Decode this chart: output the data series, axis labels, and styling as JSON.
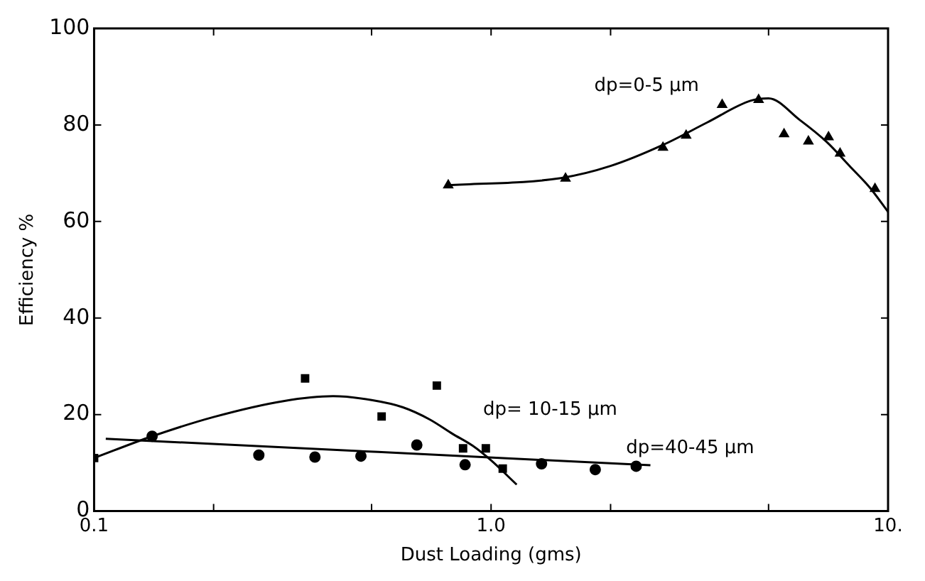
{
  "chart_data": {
    "type": "scatter",
    "xlabel": "Dust Loading (gms)",
    "ylabel": "Efficiency %",
    "log": "x",
    "grid": false,
    "legend": false,
    "xlim": [
      0.1,
      10
    ],
    "xticks": [
      0.1,
      {
        "value": 0.2,
        "label": null
      },
      {
        "value": 0.5,
        "label": null
      },
      {
        "value": 1,
        "label": "1.0"
      },
      {
        "value": 2,
        "label": null
      },
      {
        "value": 5,
        "label": null
      },
      {
        "value": 10,
        "label": "10."
      }
    ],
    "ylim": [
      0,
      100
    ],
    "yticks": [
      0,
      20,
      40,
      60,
      80,
      100
    ],
    "series": [
      {
        "type": "scatter",
        "marker": "triangle",
        "color": "#000000",
        "x": [
          0.78,
          1.54,
          2.71,
          3.1,
          3.82,
          4.72,
          5.47,
          6.3,
          7.08,
          7.57,
          9.27
        ],
        "values": [
          67.5,
          68.9,
          75.3,
          77.8,
          84.2,
          85.2,
          78.1,
          76.6,
          77.5,
          74.1,
          66.8
        ]
      },
      {
        "type": "line",
        "color": "#000000",
        "x": [
          0.78,
          1.5,
          2,
          2.7,
          3.5,
          4.5,
          5,
          6,
          7,
          8,
          9,
          10
        ],
        "values": [
          67.5,
          69,
          71.5,
          75.8,
          80.5,
          85,
          85.5,
          81,
          76.5,
          71.5,
          67,
          62
        ]
      },
      {
        "type": "scatter",
        "marker": "square",
        "color": "#000000",
        "x": [
          0.1,
          0.34,
          0.53,
          0.73,
          0.85,
          0.97,
          1.07
        ],
        "values": [
          11,
          27.5,
          19.6,
          26,
          13,
          13,
          8.8
        ]
      },
      {
        "type": "line",
        "color": "#000000",
        "x": [
          0.1,
          0.14,
          0.2,
          0.3,
          0.4,
          0.5,
          0.6,
          0.7,
          0.8,
          0.9,
          1,
          1.16
        ],
        "values": [
          11,
          15.5,
          19.5,
          22.8,
          23.8,
          23,
          21.5,
          19,
          16,
          13.5,
          10.5,
          5.5
        ]
      },
      {
        "type": "scatter",
        "marker": "circle",
        "color": "#000000",
        "x": [
          0.14,
          0.26,
          0.36,
          0.47,
          0.65,
          0.86,
          1.34,
          1.83,
          2.32
        ],
        "values": [
          15.5,
          11.6,
          11.2,
          11.4,
          13.7,
          9.6,
          9.8,
          8.6,
          9.3
        ]
      },
      {
        "type": "line",
        "color": "#000000",
        "x": [
          0.107,
          2.52
        ],
        "values": [
          15,
          9.5
        ]
      }
    ],
    "annotations": [
      "dp=0-5 µm",
      "dp= 10-15 µm",
      "dp=40-45 µm"
    ]
  }
}
